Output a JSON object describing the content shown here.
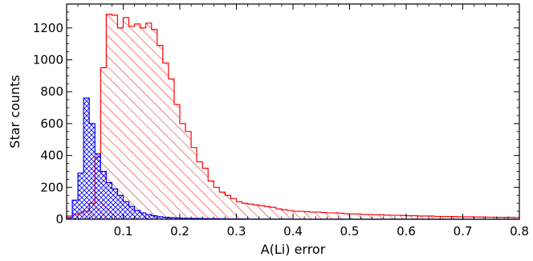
{
  "chart_data": {
    "type": "histogram",
    "title": "",
    "xlabel": "A(Li) error",
    "ylabel": "Star counts",
    "xlim": [
      0.0,
      0.8
    ],
    "ylim": [
      0,
      1350
    ],
    "bin_width": 0.01,
    "grid": false,
    "legend": "none",
    "x_ticks": [
      0.1,
      0.2,
      0.3,
      0.4,
      0.5,
      0.6,
      0.7,
      0.8
    ],
    "x_tick_labels": [
      "0.1",
      "0.2",
      "0.3",
      "0.4",
      "0.5",
      "0.6",
      "0.7",
      "0.8"
    ],
    "y_ticks": [
      0,
      200,
      400,
      600,
      800,
      1000,
      1200
    ],
    "y_tick_labels": [
      "0",
      "200",
      "400",
      "600",
      "800",
      "1000",
      "1200"
    ],
    "series": [
      {
        "color": "#ff0000",
        "hatch": "diagonal",
        "bin_start": 0.0,
        "values": [
          20,
          30,
          40,
          50,
          100,
          390,
          950,
          1285,
          1280,
          1200,
          1265,
          1210,
          1225,
          1200,
          1230,
          1190,
          1090,
          980,
          880,
          720,
          600,
          550,
          450,
          360,
          320,
          240,
          200,
          170,
          150,
          130,
          110,
          100,
          95,
          90,
          85,
          80,
          75,
          65,
          60,
          55,
          50,
          50,
          48,
          45,
          45,
          42,
          40,
          40,
          38,
          35,
          33,
          33,
          30,
          30,
          28,
          28,
          26,
          25,
          25,
          24,
          22,
          22,
          20,
          20,
          20,
          18,
          18,
          17,
          17,
          15,
          15,
          15,
          14,
          14,
          13,
          13,
          12,
          12,
          12,
          11
        ]
      },
      {
        "color": "#0000ff",
        "hatch": "cross",
        "bin_start": 0.0,
        "values": [
          10,
          120,
          290,
          760,
          600,
          410,
          300,
          230,
          190,
          150,
          110,
          80,
          55,
          40,
          30,
          22,
          16,
          12,
          10,
          8,
          7,
          6,
          5,
          5,
          4,
          4,
          3,
          3,
          2,
          2,
          2,
          2,
          1,
          1,
          1,
          1,
          1,
          1,
          1,
          1,
          0,
          0,
          0,
          0,
          0,
          0,
          0,
          0,
          0,
          0,
          0,
          0,
          0,
          0,
          0,
          0,
          0,
          0,
          0,
          0,
          0,
          0,
          0,
          0,
          0,
          0,
          0,
          0,
          0,
          0,
          0,
          0,
          0,
          0,
          0,
          0,
          0,
          0,
          0,
          0
        ]
      }
    ]
  }
}
